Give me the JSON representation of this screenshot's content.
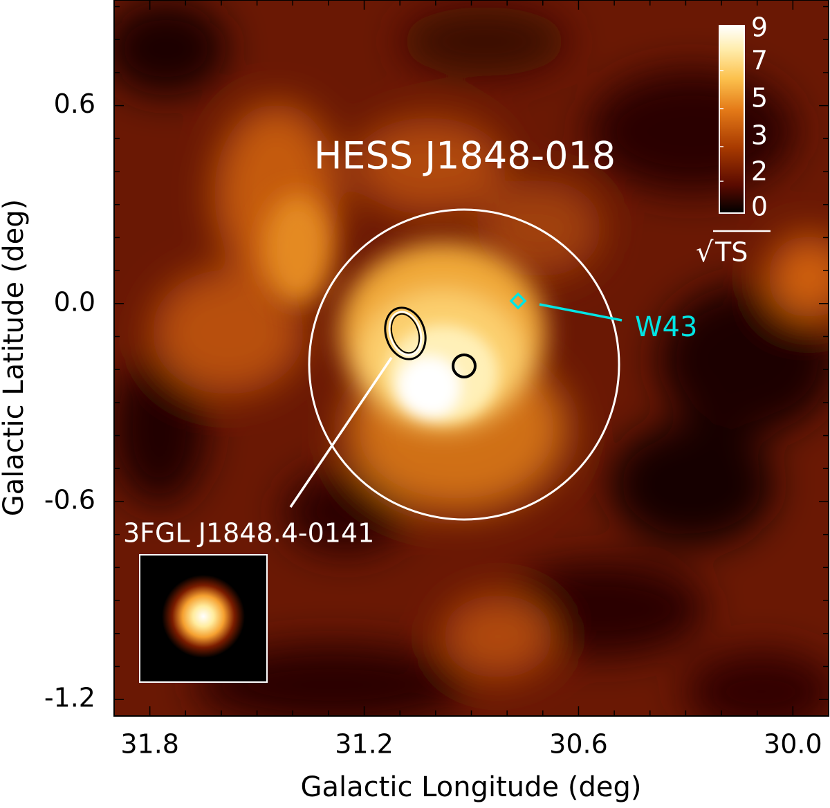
{
  "chart_data": {
    "type": "heatmap",
    "map_kind": "significance map",
    "xlabel": "Galactic Longitude (deg)",
    "ylabel": "Galactic Latitude (deg)",
    "xlim": [
      31.9,
      29.9
    ],
    "ylim": [
      -1.25,
      0.92
    ],
    "x_reversed": true,
    "x_ticks": [
      31.8,
      31.2,
      30.6,
      30.0
    ],
    "x_tick_labels": [
      "31.8",
      "31.2",
      "30.6",
      "30.0"
    ],
    "y_ticks": [
      0.6,
      0.0,
      -0.6,
      -1.2
    ],
    "y_tick_labels": [
      "0.6",
      "0.0",
      "-0.6",
      "-1.2"
    ],
    "colorbar": {
      "label": "√TS",
      "label_radical": "√",
      "label_text": "TS",
      "tick_labels": [
        "9",
        "7",
        "5",
        "3",
        "2",
        "0"
      ],
      "colormap": "black-red-orange-yellow-white",
      "colors": [
        "#000000",
        "#5a0a00",
        "#a83a00",
        "#e47a18",
        "#fcc24e",
        "#ffeeb0",
        "#ffffff"
      ]
    },
    "annotations": {
      "source_label": "HESS J1848-018",
      "source_region_center": [
        31.0,
        -0.2
      ],
      "source_region_radius_deg": 0.46,
      "best_fit_position": [
        30.89,
        -0.21
      ],
      "fermi_label": "3FGL J1848.4-0141",
      "fermi_ellipse_center": [
        31.07,
        -0.12
      ],
      "w43_label": "W43",
      "w43_position": [
        30.76,
        -0.02
      ],
      "w43_color": "#00e5e5",
      "psf_inset": "PSF"
    }
  }
}
